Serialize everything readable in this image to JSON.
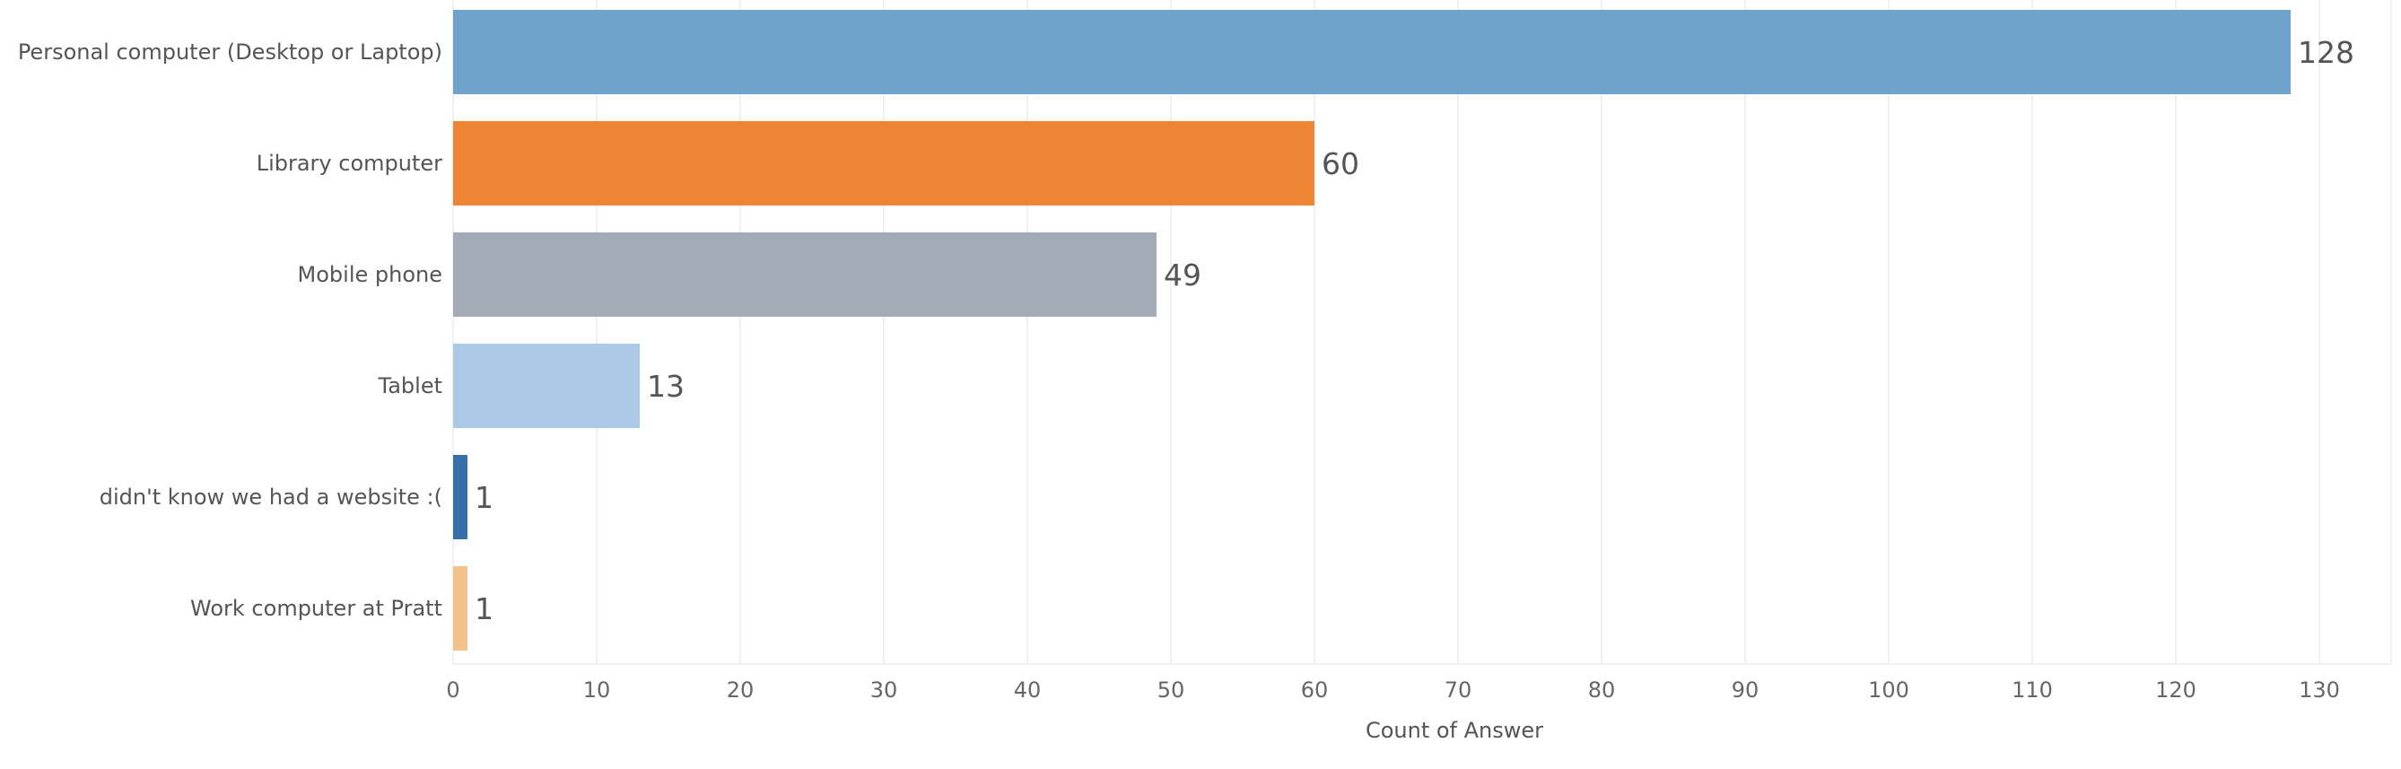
{
  "chart_data": {
    "type": "bar",
    "orientation": "horizontal",
    "categories": [
      "Personal computer (Desktop or Laptop)",
      "Library computer",
      "Mobile phone",
      "Tablet",
      "didn't know we had a website :(",
      "Work computer at Pratt"
    ],
    "values": [
      128,
      60,
      49,
      13,
      1,
      1
    ],
    "colors": [
      "#6fa3cc",
      "#ed8535",
      "#a3abb7",
      "#abc9e7",
      "#3570aa",
      "#f5c18a"
    ],
    "xlabel": "Count of Answer",
    "ylabel": "",
    "xlim": [
      0,
      135
    ],
    "ticks": [
      0,
      10,
      20,
      30,
      40,
      50,
      60,
      70,
      80,
      90,
      100,
      110,
      120,
      130
    ],
    "tick_labels": [
      "0",
      "10",
      "20",
      "30",
      "40",
      "50",
      "60",
      "70",
      "80",
      "90",
      "100",
      "110",
      "120",
      "130"
    ],
    "data_labels": [
      "128",
      "60",
      "49",
      "13",
      "1",
      "1"
    ],
    "grid": true,
    "legend": "none"
  }
}
